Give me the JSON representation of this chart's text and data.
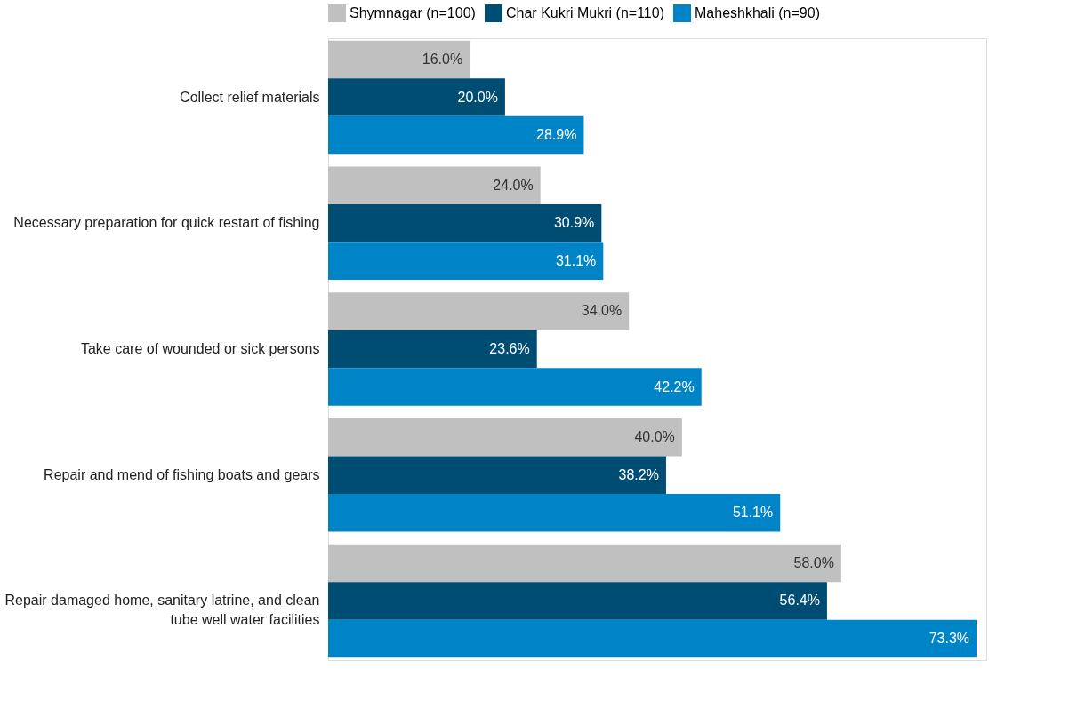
{
  "chart_data": {
    "type": "bar",
    "orientation": "horizontal",
    "legend": "top left",
    "xlim": [
      0,
      74.4
    ],
    "categories": [
      "Collect relief materials",
      "Necessary preparation for quick restart of fishing",
      "Take care of wounded or sick persons",
      "Repair and mend of fishing boats and gears",
      "Repair damaged home, sanitary latrine, and clean tube well water facilities"
    ],
    "series": [
      {
        "name": "Shymnagar (n=100)",
        "color": "#c0c0c0",
        "values": [
          16.0,
          24.0,
          34.0,
          40.0,
          58.0
        ],
        "value_labels": [
          "16.0%",
          "24.0%",
          "34.0%",
          "40.0%",
          "58.0%"
        ]
      },
      {
        "name": "Char Kukri Mukri (n=110)",
        "color": "#004d74",
        "values": [
          20.0,
          30.9,
          23.6,
          38.2,
          56.4
        ],
        "value_labels": [
          "20.0%",
          "30.9%",
          "23.6%",
          "38.2%",
          "56.4%"
        ]
      },
      {
        "name": "Maheshkhali (n=90)",
        "color": "#0084c8",
        "values": [
          28.9,
          31.1,
          42.2,
          51.1,
          73.3
        ],
        "value_labels": [
          "28.9%",
          "31.1%",
          "42.2%",
          "51.1%",
          "73.3%"
        ]
      }
    ]
  }
}
